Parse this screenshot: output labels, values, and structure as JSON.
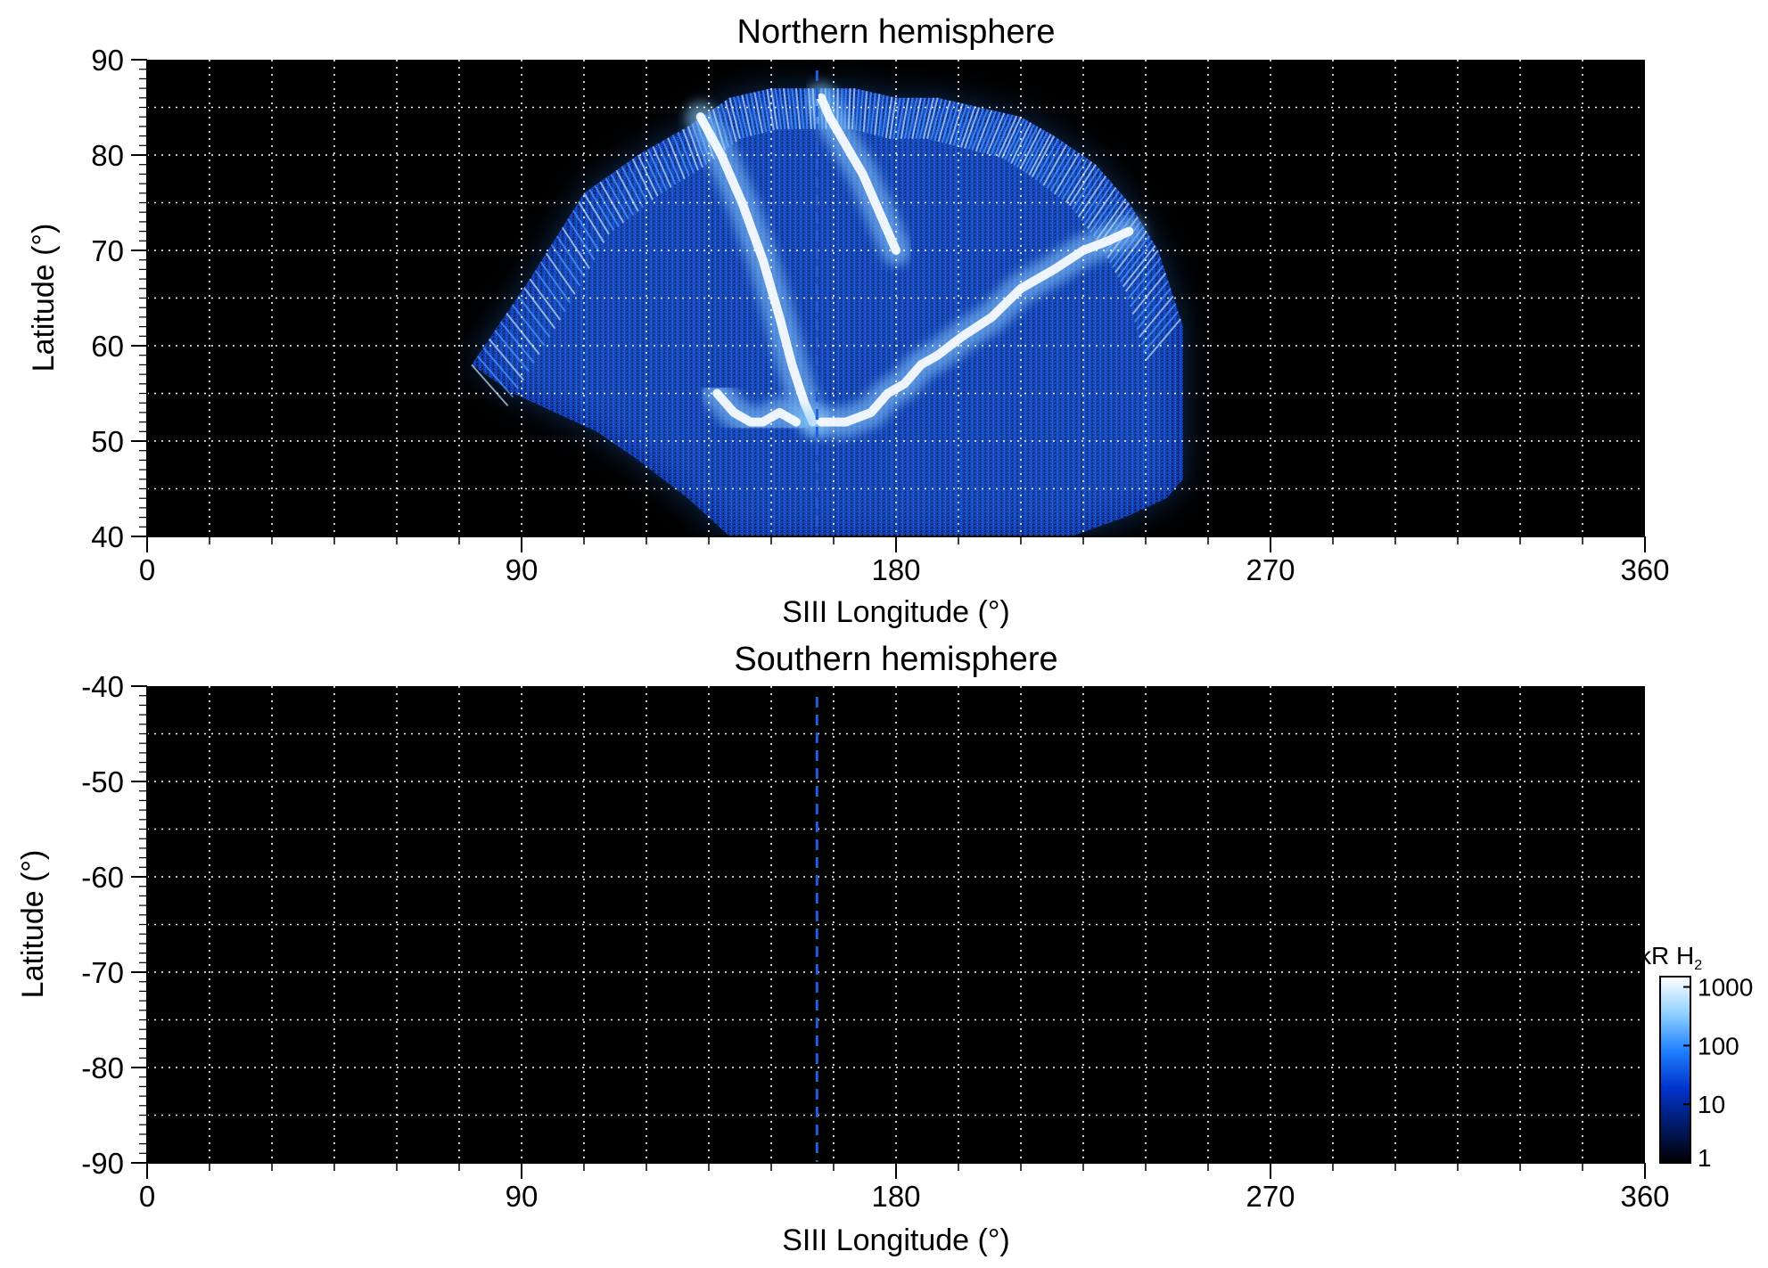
{
  "chart_data": [
    {
      "type": "heatmap",
      "title": "Northern hemisphere",
      "xlabel": "SIII Longitude (°)",
      "ylabel": "Latitude (°)",
      "xlim": [
        0,
        360
      ],
      "ylim": [
        40,
        90
      ],
      "x_ticks": [
        0,
        90,
        180,
        270,
        360
      ],
      "y_ticks": [
        40,
        50,
        60,
        70,
        80,
        90
      ],
      "grid": true,
      "grid_style": "dotted white",
      "reference_line": {
        "style": "dashed",
        "color": "#1f5fd8",
        "x": 161
      },
      "coverage_upper": {
        "x": [
          78,
          92,
          105,
          118,
          130,
          140,
          150,
          160,
          170,
          180,
          190,
          200,
          210,
          218,
          228,
          236,
          243,
          249
        ],
        "y": [
          58,
          67,
          76,
          80,
          83,
          86,
          87,
          87,
          87,
          86,
          86,
          85,
          84,
          82,
          79,
          75,
          70,
          62
        ]
      },
      "coverage_lower": {
        "x": [
          249,
          245,
          235,
          222,
          210,
          195,
          180,
          165,
          152,
          140,
          130,
          118,
          108,
          98,
          88,
          78
        ],
        "y": [
          46,
          44,
          42,
          40,
          40,
          40,
          40,
          40,
          40,
          40,
          44,
          48,
          51,
          53,
          55,
          58
        ]
      },
      "emission_arcs": [
        {
          "x": [
            133,
            138,
            143,
            148,
            152,
            155,
            158,
            160
          ],
          "y": [
            84,
            80,
            75,
            69,
            63,
            58,
            54,
            52
          ]
        },
        {
          "x": [
            137,
            141,
            145,
            148,
            152,
            156
          ],
          "y": [
            55,
            53,
            52,
            52,
            53,
            52
          ]
        },
        {
          "x": [
            162,
            168,
            174,
            178,
            182,
            186,
            190,
            196,
            203,
            210,
            218,
            225,
            231,
            236
          ],
          "y": [
            52,
            52,
            53,
            55,
            56,
            58,
            59,
            61,
            63,
            66,
            68,
            70,
            71,
            72
          ]
        },
        {
          "x": [
            162,
            164,
            168,
            172,
            176,
            180
          ],
          "y": [
            86,
            84,
            81,
            78,
            74,
            70
          ]
        }
      ]
    },
    {
      "type": "heatmap",
      "title": "Southern hemisphere",
      "xlabel": "SIII Longitude (°)",
      "ylabel": "Latitude (°)",
      "xlim": [
        0,
        360
      ],
      "ylim": [
        -90,
        -40
      ],
      "x_ticks": [
        0,
        90,
        180,
        270,
        360
      ],
      "y_ticks": [
        -40,
        -50,
        -60,
        -70,
        -80,
        -90
      ],
      "grid": true,
      "grid_style": "dotted white",
      "reference_line": {
        "style": "dashed",
        "color": "#1f5fd8",
        "x": 161
      }
    }
  ],
  "colorbar": {
    "title_main": "kR H",
    "title_sub": "2",
    "scale": "log",
    "ticks": [
      "1000",
      "100",
      "10",
      "1"
    ],
    "tick_values": [
      1000,
      100,
      10,
      1
    ],
    "range": [
      1,
      1500
    ],
    "colors": [
      "#000000",
      "#001a66",
      "#0033cc",
      "#1f7fff",
      "#8fd0ff",
      "#ffffff"
    ]
  },
  "colors": {
    "background": "#000000",
    "grid": "#ffffff",
    "reference_line": "#1f5fd8"
  }
}
